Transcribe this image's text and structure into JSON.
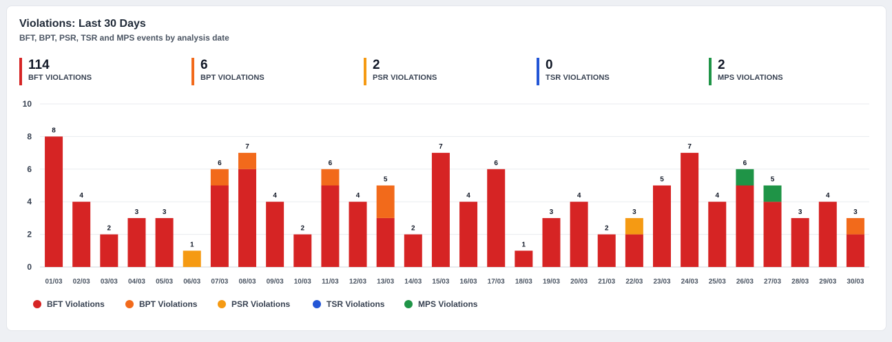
{
  "card": {
    "title": "Violations: Last 30 Days",
    "subtitle": "BFT, BPT, PSR, TSR and MPS events by analysis date"
  },
  "stats": [
    {
      "value": "114",
      "label": "BFT VIOLATIONS",
      "color": "#d62424"
    },
    {
      "value": "6",
      "label": "BPT VIOLATIONS",
      "color": "#f26a1b"
    },
    {
      "value": "2",
      "label": "PSR VIOLATIONS",
      "color": "#f59a13"
    },
    {
      "value": "0",
      "label": "TSR VIOLATIONS",
      "color": "#2356d6"
    },
    {
      "value": "2",
      "label": "MPS VIOLATIONS",
      "color": "#1f9447"
    }
  ],
  "chart_data": {
    "type": "bar",
    "stacked": true,
    "categories": [
      "01/03",
      "02/03",
      "03/03",
      "04/03",
      "05/03",
      "06/03",
      "07/03",
      "08/03",
      "09/03",
      "10/03",
      "11/03",
      "12/03",
      "13/03",
      "14/03",
      "15/03",
      "16/03",
      "17/03",
      "18/03",
      "19/03",
      "20/03",
      "21/03",
      "22/03",
      "23/03",
      "24/03",
      "25/03",
      "26/03",
      "27/03",
      "28/03",
      "29/03",
      "30/03"
    ],
    "series": [
      {
        "name": "BFT Violations",
        "color": "#d62424",
        "values": [
          8,
          4,
          2,
          3,
          3,
          0,
          5,
          6,
          4,
          2,
          5,
          4,
          3,
          2,
          7,
          4,
          6,
          1,
          3,
          4,
          2,
          2,
          5,
          7,
          4,
          5,
          4,
          3,
          4,
          2
        ]
      },
      {
        "name": "BPT Violations",
        "color": "#f26a1b",
        "values": [
          0,
          0,
          0,
          0,
          0,
          0,
          1,
          1,
          0,
          0,
          1,
          0,
          2,
          0,
          0,
          0,
          0,
          0,
          0,
          0,
          0,
          0,
          0,
          0,
          0,
          0,
          0,
          0,
          0,
          1
        ]
      },
      {
        "name": "PSR Violations",
        "color": "#f59a13",
        "values": [
          0,
          0,
          0,
          0,
          0,
          1,
          0,
          0,
          0,
          0,
          0,
          0,
          0,
          0,
          0,
          0,
          0,
          0,
          0,
          0,
          0,
          1,
          0,
          0,
          0,
          0,
          0,
          0,
          0,
          0
        ]
      },
      {
        "name": "TSR Violations",
        "color": "#2356d6",
        "values": [
          0,
          0,
          0,
          0,
          0,
          0,
          0,
          0,
          0,
          0,
          0,
          0,
          0,
          0,
          0,
          0,
          0,
          0,
          0,
          0,
          0,
          0,
          0,
          0,
          0,
          0,
          0,
          0,
          0,
          0
        ]
      },
      {
        "name": "MPS Violations",
        "color": "#1f9447",
        "values": [
          0,
          0,
          0,
          0,
          0,
          0,
          0,
          0,
          0,
          0,
          0,
          0,
          0,
          0,
          0,
          0,
          0,
          0,
          0,
          0,
          0,
          0,
          0,
          0,
          0,
          1,
          1,
          0,
          0,
          0
        ]
      }
    ],
    "totals": [
      8,
      4,
      2,
      3,
      3,
      1,
      6,
      7,
      4,
      2,
      6,
      4,
      5,
      2,
      7,
      4,
      6,
      1,
      3,
      4,
      2,
      3,
      5,
      7,
      4,
      6,
      5,
      3,
      4,
      3
    ],
    "yticks": [
      0,
      2,
      4,
      6,
      8,
      10
    ],
    "ylim": [
      0,
      10
    ],
    "grid": true,
    "legend_position": "bottom-left"
  }
}
